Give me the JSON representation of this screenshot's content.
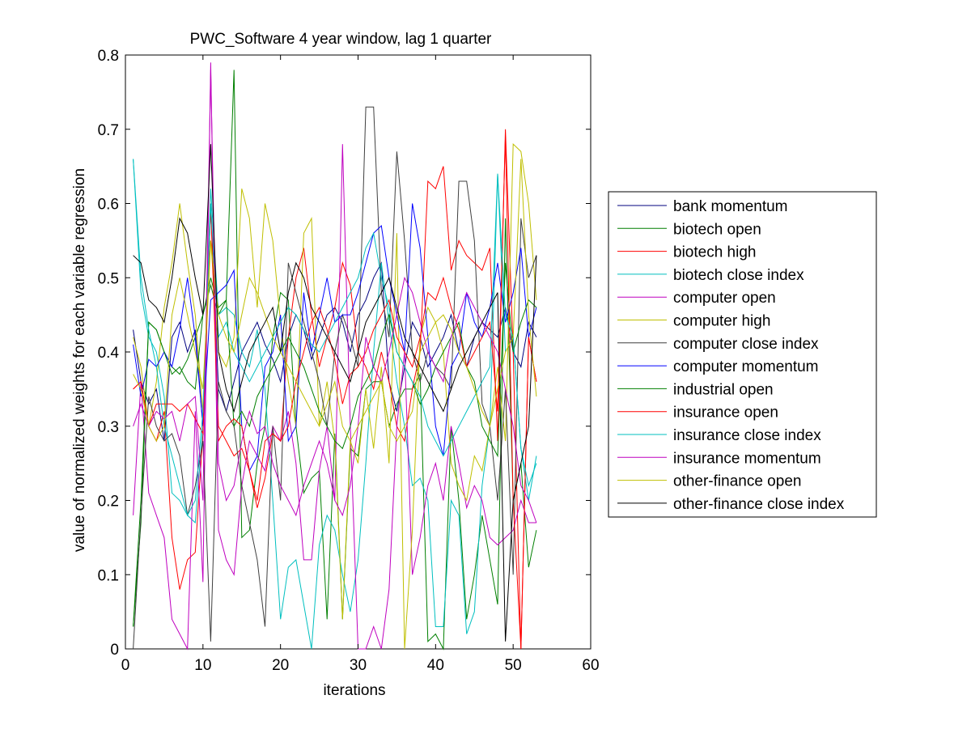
{
  "chart_data": {
    "type": "line",
    "title": "PWC_Software 4 year window, lag 1 quarter",
    "xlabel": "iterations",
    "ylabel": "value of normalized weights for each variable regression",
    "xlim": [
      0,
      60
    ],
    "ylim": [
      0,
      0.8
    ],
    "xticks": [
      "0",
      "10",
      "20",
      "30",
      "40",
      "50",
      "60"
    ],
    "yticks": [
      "0",
      "0.1",
      "0.2",
      "0.3",
      "0.4",
      "0.5",
      "0.6",
      "0.7",
      "0.8"
    ],
    "grid": false,
    "legend_position": "outside-right",
    "x": [
      1,
      2,
      3,
      4,
      5,
      6,
      7,
      8,
      9,
      10,
      11,
      12,
      13,
      14,
      15,
      16,
      17,
      18,
      19,
      20,
      21,
      22,
      23,
      24,
      25,
      26,
      27,
      28,
      29,
      30,
      31,
      32,
      33,
      34,
      35,
      36,
      37,
      38,
      39,
      40,
      41,
      42,
      43,
      44,
      45,
      46,
      47,
      48,
      49,
      50,
      51,
      52,
      53
    ],
    "series": [
      {
        "name": "bank momentum",
        "color": "#00007f",
        "values": [
          0.43,
          0.36,
          0.33,
          0.35,
          0.28,
          0.42,
          0.44,
          0.4,
          0.43,
          0.3,
          0.6,
          0.35,
          0.32,
          0.36,
          0.4,
          0.42,
          0.44,
          0.41,
          0.39,
          0.36,
          0.42,
          0.45,
          0.43,
          0.39,
          0.42,
          0.45,
          0.46,
          0.44,
          0.4,
          0.45,
          0.47,
          0.5,
          0.52,
          0.36,
          0.32,
          0.38,
          0.44,
          0.42,
          0.38,
          0.4,
          0.42,
          0.45,
          0.4,
          0.38,
          0.42,
          0.44,
          0.43,
          0.42,
          0.46,
          0.4,
          0.38,
          0.44,
          0.42
        ]
      },
      {
        "name": "biotech open",
        "color": "#007f00",
        "values": [
          0.03,
          0.17,
          0.44,
          0.43,
          0.4,
          0.38,
          0.37,
          0.39,
          0.42,
          0.45,
          0.49,
          0.45,
          0.47,
          0.78,
          0.15,
          0.16,
          0.25,
          0.3,
          0.42,
          0.48,
          0.47,
          0.3,
          0.21,
          0.23,
          0.24,
          0.04,
          0.29,
          0.04,
          0.27,
          0.26,
          0.35,
          0.36,
          0.36,
          0.3,
          0.33,
          0.35,
          0.35,
          0.37,
          0.01,
          0.02,
          0.0,
          0.3,
          0.2,
          0.04,
          0.1,
          0.18,
          0.12,
          0.06,
          0.58,
          0.2,
          0.25,
          0.11,
          0.16
        ]
      },
      {
        "name": "biotech high",
        "color": "#ff0000",
        "values": [
          0.35,
          0.36,
          0.3,
          0.28,
          0.32,
          0.15,
          0.08,
          0.12,
          0.13,
          0.29,
          0.6,
          0.3,
          0.28,
          0.26,
          0.27,
          0.24,
          0.19,
          0.23,
          0.29,
          0.28,
          0.42,
          0.5,
          0.54,
          0.45,
          0.38,
          0.42,
          0.46,
          0.52,
          0.49,
          0.4,
          0.38,
          0.35,
          0.4,
          0.36,
          0.3,
          0.28,
          0.35,
          0.4,
          0.63,
          0.62,
          0.65,
          0.51,
          0.55,
          0.53,
          0.52,
          0.51,
          0.54,
          0.28,
          0.7,
          0.4,
          0.0,
          0.42,
          0.36
        ]
      },
      {
        "name": "biotech close index",
        "color": "#00bfbf",
        "values": [
          0.66,
          0.48,
          0.42,
          0.4,
          0.34,
          0.21,
          0.2,
          0.18,
          0.17,
          0.3,
          0.62,
          0.45,
          0.46,
          0.45,
          0.4,
          0.38,
          0.43,
          0.35,
          0.2,
          0.04,
          0.11,
          0.12,
          0.06,
          0.0,
          0.14,
          0.18,
          0.16,
          0.1,
          0.05,
          0.12,
          0.25,
          0.4,
          0.52,
          0.44,
          0.36,
          0.3,
          0.22,
          0.23,
          0.2,
          0.03,
          0.03,
          0.2,
          0.18,
          0.02,
          0.05,
          0.22,
          0.3,
          0.64,
          0.4,
          0.42,
          0.27,
          0.2,
          0.26
        ]
      },
      {
        "name": "computer open",
        "color": "#bf00bf",
        "values": [
          0.18,
          0.36,
          0.21,
          0.18,
          0.15,
          0.04,
          0.02,
          0.0,
          0.32,
          0.09,
          0.79,
          0.16,
          0.12,
          0.1,
          0.22,
          0.28,
          0.26,
          0.24,
          0.3,
          0.28,
          0.32,
          0.25,
          0.12,
          0.12,
          0.24,
          0.3,
          0.2,
          0.68,
          0.3,
          0.0,
          0.0,
          0.03,
          0.0,
          0.08,
          0.3,
          0.4,
          0.1,
          0.15,
          0.22,
          0.25,
          0.2,
          0.3,
          0.25,
          0.19,
          0.22,
          0.2,
          0.15,
          0.14,
          0.15,
          0.16,
          0.2,
          0.17,
          0.17
        ]
      },
      {
        "name": "computer high",
        "color": "#bfbf00",
        "values": [
          0.42,
          0.38,
          0.3,
          0.36,
          0.46,
          0.52,
          0.6,
          0.52,
          0.45,
          0.32,
          0.55,
          0.4,
          0.38,
          0.42,
          0.62,
          0.58,
          0.46,
          0.6,
          0.55,
          0.44,
          0.36,
          0.3,
          0.56,
          0.58,
          0.3,
          0.36,
          0.28,
          0.04,
          0.28,
          0.25,
          0.35,
          0.27,
          0.38,
          0.25,
          0.56,
          0.0,
          0.16,
          0.42,
          0.46,
          0.44,
          0.4,
          0.25,
          0.22,
          0.2,
          0.26,
          0.24,
          0.3,
          0.38,
          0.28,
          0.68,
          0.67,
          0.6,
          0.47
        ]
      },
      {
        "name": "computer close index",
        "color": "#3f3f3f",
        "values": [
          0.0,
          0.18,
          0.34,
          0.3,
          0.28,
          0.29,
          0.26,
          0.18,
          0.22,
          0.28,
          0.01,
          0.36,
          0.32,
          0.3,
          0.22,
          0.17,
          0.12,
          0.03,
          0.3,
          0.2,
          0.52,
          0.48,
          0.44,
          0.4,
          0.36,
          0.3,
          0.4,
          0.45,
          0.42,
          0.38,
          0.73,
          0.73,
          0.48,
          0.42,
          0.67,
          0.55,
          0.4,
          0.36,
          0.4,
          0.38,
          0.37,
          0.35,
          0.63,
          0.63,
          0.55,
          0.33,
          0.3,
          0.2,
          0.35,
          0.1,
          0.58,
          0.5,
          0.53
        ]
      },
      {
        "name": "computer momentum",
        "color": "#0000ff",
        "values": [
          0.41,
          0.34,
          0.39,
          0.38,
          0.4,
          0.38,
          0.43,
          0.5,
          0.42,
          0.3,
          0.47,
          0.48,
          0.49,
          0.51,
          0.3,
          0.24,
          0.26,
          0.38,
          0.4,
          0.45,
          0.28,
          0.3,
          0.48,
          0.4,
          0.45,
          0.5,
          0.44,
          0.45,
          0.45,
          0.48,
          0.52,
          0.56,
          0.57,
          0.5,
          0.45,
          0.4,
          0.6,
          0.54,
          0.42,
          0.3,
          0.26,
          0.38,
          0.4,
          0.48,
          0.44,
          0.42,
          0.46,
          0.52,
          0.44,
          0.48,
          0.54,
          0.42,
          0.46
        ]
      },
      {
        "name": "industrial open",
        "color": "#007f00",
        "values": [
          0.03,
          0.2,
          0.44,
          0.43,
          0.4,
          0.37,
          0.38,
          0.36,
          0.35,
          0.45,
          0.5,
          0.46,
          0.47,
          0.3,
          0.32,
          0.3,
          0.34,
          0.36,
          0.38,
          0.4,
          0.42,
          0.4,
          0.38,
          0.35,
          0.32,
          0.3,
          0.28,
          0.27,
          0.3,
          0.34,
          0.36,
          0.38,
          0.42,
          0.45,
          0.4,
          0.38,
          0.36,
          0.33,
          0.35,
          0.38,
          0.4,
          0.42,
          0.44,
          0.38,
          0.36,
          0.3,
          0.28,
          0.26,
          0.52,
          0.4,
          0.44,
          0.47,
          0.46
        ]
      },
      {
        "name": "insurance open",
        "color": "#ff0000",
        "values": [
          0.35,
          0.36,
          0.3,
          0.33,
          0.33,
          0.33,
          0.32,
          0.33,
          0.31,
          0.29,
          0.6,
          0.28,
          0.3,
          0.31,
          0.3,
          0.24,
          0.2,
          0.28,
          0.29,
          0.28,
          0.3,
          0.36,
          0.4,
          0.44,
          0.46,
          0.43,
          0.39,
          0.33,
          0.37,
          0.38,
          0.4,
          0.43,
          0.45,
          0.47,
          0.42,
          0.4,
          0.38,
          0.42,
          0.48,
          0.47,
          0.5,
          0.46,
          0.43,
          0.38,
          0.4,
          0.42,
          0.44,
          0.32,
          0.69,
          0.2,
          0.0,
          0.42,
          0.36
        ]
      },
      {
        "name": "insurance close index",
        "color": "#00bfbf",
        "values": [
          0.66,
          0.5,
          0.43,
          0.38,
          0.3,
          0.26,
          0.22,
          0.18,
          0.2,
          0.32,
          0.6,
          0.42,
          0.44,
          0.4,
          0.38,
          0.36,
          0.38,
          0.4,
          0.42,
          0.44,
          0.46,
          0.45,
          0.43,
          0.41,
          0.4,
          0.42,
          0.44,
          0.46,
          0.48,
          0.5,
          0.54,
          0.56,
          0.5,
          0.46,
          0.4,
          0.38,
          0.36,
          0.34,
          0.3,
          0.28,
          0.26,
          0.28,
          0.3,
          0.32,
          0.34,
          0.36,
          0.38,
          0.64,
          0.45,
          0.42,
          0.27,
          0.22,
          0.25
        ]
      },
      {
        "name": "insurance momentum",
        "color": "#bf00bf",
        "values": [
          0.3,
          0.33,
          0.3,
          0.32,
          0.31,
          0.32,
          0.28,
          0.33,
          0.34,
          0.2,
          0.78,
          0.25,
          0.2,
          0.22,
          0.28,
          0.32,
          0.29,
          0.3,
          0.25,
          0.22,
          0.2,
          0.18,
          0.22,
          0.25,
          0.28,
          0.25,
          0.2,
          0.18,
          0.22,
          0.3,
          0.42,
          0.38,
          0.36,
          0.4,
          0.45,
          0.5,
          0.48,
          0.44,
          0.4,
          0.38,
          0.36,
          0.42,
          0.45,
          0.48,
          0.46,
          0.44,
          0.42,
          0.4,
          0.35,
          0.3,
          0.22,
          0.2,
          0.17
        ]
      },
      {
        "name": "other-finance open",
        "color": "#bfbf00",
        "values": [
          0.37,
          0.35,
          0.3,
          0.28,
          0.3,
          0.45,
          0.5,
          0.45,
          0.4,
          0.35,
          0.55,
          0.45,
          0.42,
          0.4,
          0.45,
          0.5,
          0.48,
          0.45,
          0.42,
          0.4,
          0.38,
          0.36,
          0.34,
          0.32,
          0.3,
          0.33,
          0.36,
          0.3,
          0.28,
          0.3,
          0.32,
          0.34,
          0.36,
          0.3,
          0.28,
          0.3,
          0.32,
          0.4,
          0.42,
          0.44,
          0.45,
          0.43,
          0.4,
          0.38,
          0.35,
          0.32,
          0.3,
          0.35,
          0.4,
          0.42,
          0.66,
          0.45,
          0.34
        ]
      },
      {
        "name": "other-finance close index",
        "color": "#000000",
        "values": [
          0.53,
          0.52,
          0.47,
          0.46,
          0.44,
          0.5,
          0.58,
          0.56,
          0.5,
          0.45,
          0.68,
          0.4,
          0.35,
          0.32,
          0.36,
          0.4,
          0.42,
          0.44,
          0.46,
          0.4,
          0.48,
          0.52,
          0.5,
          0.46,
          0.44,
          0.42,
          0.4,
          0.38,
          0.36,
          0.4,
          0.44,
          0.46,
          0.48,
          0.5,
          0.46,
          0.42,
          0.4,
          0.38,
          0.36,
          0.34,
          0.32,
          0.35,
          0.38,
          0.4,
          0.42,
          0.44,
          0.46,
          0.48,
          0.01,
          0.2,
          0.25,
          0.3,
          0.53
        ]
      }
    ]
  }
}
